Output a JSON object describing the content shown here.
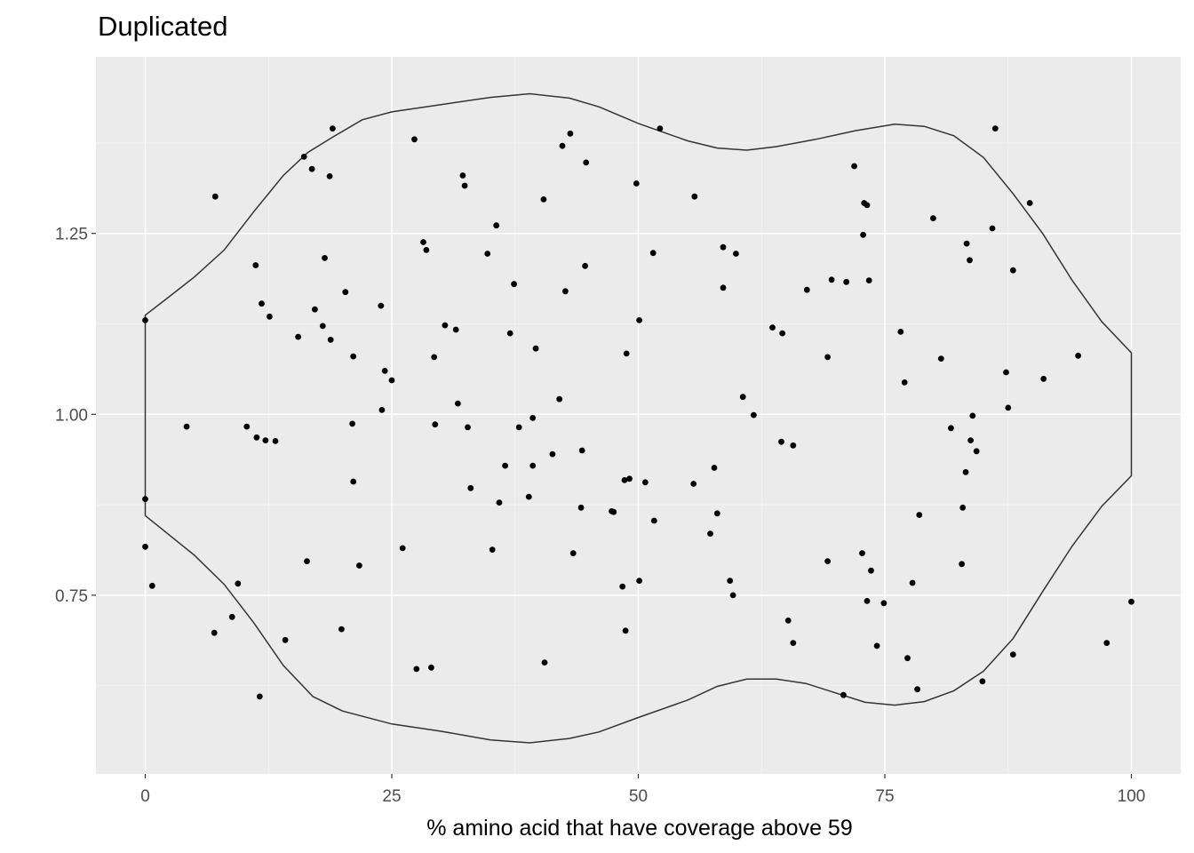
{
  "chart_data": {
    "type": "scatter",
    "title": "Duplicated",
    "xlabel": "% amino acid that have coverage above 59",
    "ylabel": "",
    "xlim": [
      -5,
      105
    ],
    "ylim": [
      0.503,
      1.494
    ],
    "x_ticks": [
      0,
      25,
      50,
      75,
      100
    ],
    "x_tick_labels": [
      "0",
      "25",
      "50",
      "75",
      "100"
    ],
    "y_ticks": [
      0.75,
      1.0,
      1.25
    ],
    "y_tick_labels": [
      "0.75",
      "1.00",
      "1.25"
    ],
    "grid": true,
    "legend": "none",
    "colors": {
      "panel": "#ebebeb",
      "grid_major": "#ffffff",
      "grid_minor": "#f5f5f5",
      "points": "#000000",
      "violin_outline": "#333333"
    },
    "violin_outline": {
      "upper": [
        [
          0,
          1.137
        ],
        [
          2,
          1.158
        ],
        [
          5,
          1.19
        ],
        [
          8,
          1.227
        ],
        [
          11,
          1.28
        ],
        [
          14,
          1.33
        ],
        [
          16.5,
          1.362
        ],
        [
          19,
          1.383
        ],
        [
          22,
          1.407
        ],
        [
          25,
          1.418
        ],
        [
          30,
          1.428
        ],
        [
          35,
          1.438
        ],
        [
          39,
          1.443
        ],
        [
          43,
          1.437
        ],
        [
          46,
          1.425
        ],
        [
          50,
          1.402
        ],
        [
          55,
          1.378
        ],
        [
          58,
          1.368
        ],
        [
          61,
          1.365
        ],
        [
          64,
          1.37
        ],
        [
          68,
          1.38
        ],
        [
          72,
          1.392
        ],
        [
          76,
          1.401
        ],
        [
          79,
          1.398
        ],
        [
          82,
          1.385
        ],
        [
          85,
          1.355
        ],
        [
          88,
          1.305
        ],
        [
          91,
          1.25
        ],
        [
          94,
          1.185
        ],
        [
          97,
          1.128
        ],
        [
          100,
          1.085
        ]
      ],
      "right_edge": [
        [
          100,
          1.085
        ],
        [
          100,
          0.915
        ]
      ],
      "lower": [
        [
          100,
          0.915
        ],
        [
          97,
          0.873
        ],
        [
          94,
          0.818
        ],
        [
          91,
          0.755
        ],
        [
          88,
          0.69
        ],
        [
          85,
          0.645
        ],
        [
          82,
          0.618
        ],
        [
          79,
          0.603
        ],
        [
          76,
          0.598
        ],
        [
          73,
          0.602
        ],
        [
          70,
          0.615
        ],
        [
          67,
          0.628
        ],
        [
          64,
          0.634
        ],
        [
          61,
          0.634
        ],
        [
          58,
          0.624
        ],
        [
          55,
          0.605
        ],
        [
          50,
          0.581
        ],
        [
          46,
          0.561
        ],
        [
          43,
          0.552
        ],
        [
          39,
          0.546
        ],
        [
          35,
          0.55
        ],
        [
          30,
          0.562
        ],
        [
          25,
          0.572
        ],
        [
          20,
          0.59
        ],
        [
          17,
          0.61
        ],
        [
          14,
          0.653
        ],
        [
          11,
          0.712
        ],
        [
          8,
          0.765
        ],
        [
          5,
          0.805
        ],
        [
          2,
          0.838
        ],
        [
          0,
          0.86
        ]
      ],
      "left_edge": [
        [
          0,
          0.86
        ],
        [
          0,
          1.137
        ]
      ]
    },
    "points": [
      [
        0.0,
        1.13
      ],
      [
        0.0,
        0.883
      ],
      [
        0.0,
        0.817
      ],
      [
        0.7,
        0.763
      ],
      [
        4.2,
        0.983
      ],
      [
        7.0,
        0.698
      ],
      [
        7.1,
        1.301
      ],
      [
        8.8,
        0.72
      ],
      [
        9.4,
        0.766
      ],
      [
        10.3,
        0.983
      ],
      [
        11.2,
        1.206
      ],
      [
        11.3,
        0.968
      ],
      [
        11.6,
        0.61
      ],
      [
        11.8,
        1.153
      ],
      [
        12.2,
        0.964
      ],
      [
        12.6,
        1.135
      ],
      [
        13.2,
        0.963
      ],
      [
        14.2,
        0.688
      ],
      [
        15.5,
        1.107
      ],
      [
        16.1,
        1.356
      ],
      [
        16.4,
        0.797
      ],
      [
        16.9,
        1.339
      ],
      [
        17.2,
        1.145
      ],
      [
        18.0,
        1.122
      ],
      [
        18.2,
        1.216
      ],
      [
        18.7,
        1.329
      ],
      [
        18.8,
        1.103
      ],
      [
        19.0,
        1.395
      ],
      [
        19.9,
        0.703
      ],
      [
        20.3,
        1.169
      ],
      [
        21.0,
        0.987
      ],
      [
        21.1,
        1.08
      ],
      [
        21.1,
        0.907
      ],
      [
        21.7,
        0.791
      ],
      [
        23.9,
        1.15
      ],
      [
        24.0,
        1.006
      ],
      [
        24.3,
        1.06
      ],
      [
        25.0,
        1.047
      ],
      [
        26.1,
        0.815
      ],
      [
        27.3,
        1.38
      ],
      [
        27.5,
        0.648
      ],
      [
        28.2,
        1.238
      ],
      [
        28.5,
        1.227
      ],
      [
        29.0,
        0.65
      ],
      [
        29.3,
        1.079
      ],
      [
        29.4,
        0.986
      ],
      [
        30.4,
        1.123
      ],
      [
        31.5,
        1.117
      ],
      [
        31.7,
        1.015
      ],
      [
        32.2,
        1.33
      ],
      [
        32.4,
        1.316
      ],
      [
        32.7,
        0.982
      ],
      [
        33.0,
        0.898
      ],
      [
        34.7,
        1.222
      ],
      [
        35.2,
        0.813
      ],
      [
        35.6,
        1.261
      ],
      [
        35.9,
        0.878
      ],
      [
        36.5,
        0.929
      ],
      [
        37.0,
        1.112
      ],
      [
        37.4,
        1.18
      ],
      [
        37.9,
        0.982
      ],
      [
        38.9,
        0.886
      ],
      [
        39.3,
        0.929
      ],
      [
        39.3,
        0.995
      ],
      [
        39.6,
        1.091
      ],
      [
        40.4,
        1.297
      ],
      [
        40.5,
        0.657
      ],
      [
        41.3,
        0.945
      ],
      [
        42.0,
        1.021
      ],
      [
        42.3,
        1.371
      ],
      [
        42.6,
        1.17
      ],
      [
        43.1,
        1.388
      ],
      [
        43.4,
        0.808
      ],
      [
        44.2,
        0.871
      ],
      [
        44.3,
        0.95
      ],
      [
        44.6,
        1.205
      ],
      [
        44.7,
        1.348
      ],
      [
        47.3,
        0.866
      ],
      [
        47.5,
        0.865
      ],
      [
        48.4,
        0.762
      ],
      [
        48.6,
        0.909
      ],
      [
        48.7,
        0.701
      ],
      [
        48.8,
        1.084
      ],
      [
        49.1,
        0.911
      ],
      [
        49.8,
        1.319
      ],
      [
        50.1,
        1.13
      ],
      [
        50.1,
        0.77
      ],
      [
        50.7,
        0.906
      ],
      [
        51.5,
        1.223
      ],
      [
        51.6,
        0.853
      ],
      [
        52.2,
        1.395
      ],
      [
        55.6,
        0.904
      ],
      [
        55.7,
        1.301
      ],
      [
        57.3,
        0.835
      ],
      [
        57.7,
        0.926
      ],
      [
        58.0,
        0.863
      ],
      [
        58.6,
        1.231
      ],
      [
        58.6,
        1.175
      ],
      [
        59.3,
        0.77
      ],
      [
        59.6,
        0.75
      ],
      [
        59.9,
        1.222
      ],
      [
        60.6,
        1.024
      ],
      [
        61.7,
        0.999
      ],
      [
        63.6,
        1.12
      ],
      [
        64.5,
        0.962
      ],
      [
        64.6,
        1.112
      ],
      [
        65.2,
        0.715
      ],
      [
        65.7,
        0.957
      ],
      [
        65.7,
        0.684
      ],
      [
        67.1,
        1.172
      ],
      [
        69.2,
        0.797
      ],
      [
        69.2,
        1.079
      ],
      [
        69.6,
        1.186
      ],
      [
        70.8,
        0.612
      ],
      [
        71.1,
        1.183
      ],
      [
        71.9,
        1.343
      ],
      [
        72.7,
        0.808
      ],
      [
        72.8,
        1.248
      ],
      [
        72.9,
        1.292
      ],
      [
        73.2,
        1.289
      ],
      [
        73.2,
        0.742
      ],
      [
        73.4,
        1.185
      ],
      [
        73.6,
        0.784
      ],
      [
        74.2,
        0.68
      ],
      [
        74.9,
        0.739
      ],
      [
        76.6,
        1.114
      ],
      [
        77.0,
        1.044
      ],
      [
        77.3,
        0.663
      ],
      [
        77.8,
        0.767
      ],
      [
        78.3,
        0.62
      ],
      [
        78.5,
        0.861
      ],
      [
        79.9,
        1.271
      ],
      [
        80.7,
        1.077
      ],
      [
        81.7,
        0.981
      ],
      [
        82.8,
        0.793
      ],
      [
        82.9,
        0.871
      ],
      [
        83.3,
        1.236
      ],
      [
        83.2,
        0.92
      ],
      [
        83.6,
        1.213
      ],
      [
        83.7,
        0.964
      ],
      [
        83.9,
        0.998
      ],
      [
        84.3,
        0.949
      ],
      [
        84.9,
        0.631
      ],
      [
        85.9,
        1.257
      ],
      [
        86.2,
        1.395
      ],
      [
        87.3,
        1.058
      ],
      [
        87.5,
        1.009
      ],
      [
        88.0,
        1.199
      ],
      [
        88.0,
        0.668
      ],
      [
        89.7,
        1.292
      ],
      [
        91.1,
        1.049
      ],
      [
        94.6,
        1.081
      ],
      [
        97.5,
        0.684
      ],
      [
        100.0,
        0.741
      ]
    ]
  }
}
